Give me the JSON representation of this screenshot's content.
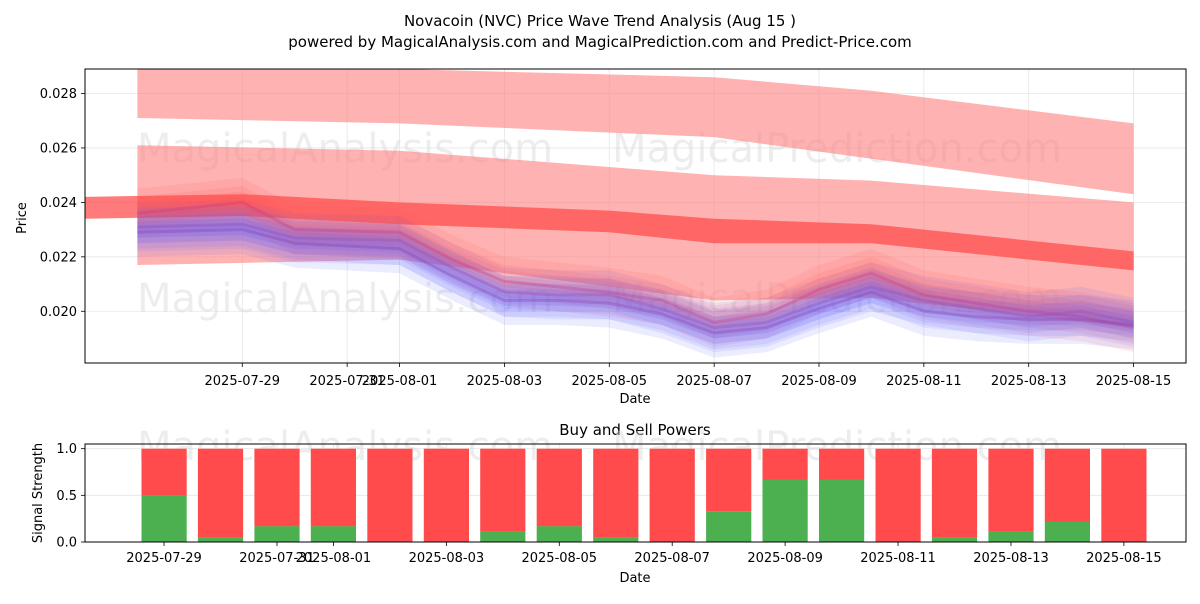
{
  "chart_data": [
    {
      "type": "line",
      "title": "Novacoin (NVC) Price Wave Trend Analysis (Aug 15 )",
      "subtitle": "powered by MagicalAnalysis.com and MagicalPrediction.com and Predict-Price.com",
      "xlabel": "Date",
      "ylabel": "Price",
      "ylim": [
        0.0181,
        0.0289
      ],
      "yticks": [
        0.02,
        0.022,
        0.024,
        0.026,
        0.028
      ],
      "ytick_labels": [
        "0.020",
        "0.022",
        "0.024",
        "0.026",
        "0.028"
      ],
      "xlim": [
        "2025-07-26",
        "2025-08-16"
      ],
      "xtick_labels": [
        "2025-07-29",
        "2025-07-31",
        "2025-08-01",
        "2025-08-03",
        "2025-08-05",
        "2025-08-07",
        "2025-08-09",
        "2025-08-11",
        "2025-08-13",
        "2025-08-15"
      ],
      "grid": true,
      "watermarks": [
        "MagicalAnalysis.com",
        "MagicalPrediction.com",
        "MagicalAnalysis.com",
        "MagicalPrediction.com"
      ],
      "colors": {
        "trend_band": "#ff7f7f",
        "trend_line": "#ff4d4d",
        "wave_blue": "#6666ff",
        "wave_red": "#ff5555"
      },
      "trend_bands": [
        {
          "x": [
            "2025-07-27",
            "2025-08-01",
            "2025-08-07",
            "2025-08-10",
            "2025-08-15"
          ],
          "low": [
            0.0271,
            0.0269,
            0.0264,
            0.0256,
            0.0243
          ],
          "high": [
            0.0289,
            0.0289,
            0.0286,
            0.0281,
            0.0269
          ]
        },
        {
          "x": [
            "2025-07-27",
            "2025-08-01",
            "2025-08-07",
            "2025-08-10",
            "2025-08-15"
          ],
          "low": [
            0.0217,
            0.0219,
            0.0204,
            0.0205,
            0.0194
          ],
          "high": [
            0.0261,
            0.0259,
            0.025,
            0.0248,
            0.024
          ]
        },
        {
          "x": [
            "2025-07-26",
            "2025-07-29",
            "2025-08-01",
            "2025-08-05",
            "2025-08-07",
            "2025-08-10",
            "2025-08-15"
          ],
          "low": [
            0.0234,
            0.0235,
            0.0232,
            0.0229,
            0.0225,
            0.0225,
            0.0215
          ],
          "high": [
            0.0242,
            0.0243,
            0.024,
            0.0237,
            0.0234,
            0.0232,
            0.0222
          ]
        }
      ],
      "series": [
        {
          "x": [
            "2025-07-27",
            "2025-07-29",
            "2025-07-30",
            "2025-08-01",
            "2025-08-02",
            "2025-08-03",
            "2025-08-04",
            "2025-08-05",
            "2025-08-06",
            "2025-08-07",
            "2025-08-08",
            "2025-08-09",
            "2025-08-10",
            "2025-08-11",
            "2025-08-12",
            "2025-08-13",
            "2025-08-14",
            "2025-08-15"
          ],
          "values": [
            0.0231,
            0.0232,
            0.0227,
            0.0226,
            0.0216,
            0.0207,
            0.0206,
            0.0206,
            0.0201,
            0.0194,
            0.0196,
            0.0203,
            0.0209,
            0.0204,
            0.0201,
            0.0198,
            0.02,
            0.0196
          ]
        },
        {
          "x": [
            "2025-07-27",
            "2025-07-29",
            "2025-07-30",
            "2025-08-01",
            "2025-08-02",
            "2025-08-03",
            "2025-08-04",
            "2025-08-05",
            "2025-08-06",
            "2025-08-07",
            "2025-08-08",
            "2025-08-09",
            "2025-08-10",
            "2025-08-11",
            "2025-08-12",
            "2025-08-13",
            "2025-08-14",
            "2025-08-15"
          ],
          "values": [
            0.0236,
            0.024,
            0.023,
            0.0229,
            0.0219,
            0.0211,
            0.0209,
            0.0207,
            0.0204,
            0.0196,
            0.0199,
            0.0208,
            0.0214,
            0.0206,
            0.0203,
            0.02,
            0.0198,
            0.0194
          ]
        },
        {
          "x": [
            "2025-07-27",
            "2025-07-29",
            "2025-07-30",
            "2025-08-01",
            "2025-08-02",
            "2025-08-03",
            "2025-08-04",
            "2025-08-05",
            "2025-08-06",
            "2025-08-07",
            "2025-08-08",
            "2025-08-09",
            "2025-08-10",
            "2025-08-11",
            "2025-08-12",
            "2025-08-13",
            "2025-08-14",
            "2025-08-15"
          ],
          "values": [
            0.0229,
            0.023,
            0.0225,
            0.0223,
            0.0213,
            0.0204,
            0.0204,
            0.0203,
            0.0199,
            0.0192,
            0.0194,
            0.0201,
            0.0207,
            0.02,
            0.0198,
            0.0197,
            0.0197,
            0.0195
          ]
        }
      ]
    },
    {
      "type": "bar",
      "stacked": true,
      "title": "Buy and Sell Powers",
      "xlabel": "Date",
      "ylabel": "Signal Strength",
      "ylim": [
        0,
        1.05
      ],
      "yticks": [
        0,
        0.5,
        1.0
      ],
      "ytick_labels": [
        "0.0",
        "0.5",
        "1.0"
      ],
      "xlim": [
        "2025-07-27.6",
        "2025-08-16.1"
      ],
      "xtick_labels": [
        "2025-07-29",
        "2025-07-31",
        "2025-08-01",
        "2025-08-03",
        "2025-08-05",
        "2025-08-07",
        "2025-08-09",
        "2025-08-11",
        "2025-08-13",
        "2025-08-15"
      ],
      "grid": true,
      "watermarks": [
        "MagicalAnalysis.com",
        "MagicalPrediction.com"
      ],
      "categories": [
        "2025-07-29",
        "2025-07-30",
        "2025-07-31",
        "2025-08-01",
        "2025-08-02",
        "2025-08-03",
        "2025-08-04",
        "2025-08-05",
        "2025-08-06",
        "2025-08-07",
        "2025-08-08",
        "2025-08-09",
        "2025-08-10",
        "2025-08-11",
        "2025-08-12",
        "2025-08-13",
        "2025-08-14",
        "2025-08-15"
      ],
      "series": [
        {
          "color": "#4caf50",
          "values": [
            0.5,
            0.05,
            0.17,
            0.17,
            0.0,
            0.0,
            0.11,
            0.17,
            0.05,
            0.0,
            0.33,
            0.67,
            0.67,
            0.0,
            0.05,
            0.11,
            0.22,
            0.0
          ]
        },
        {
          "color": "#ff4b4b",
          "values": [
            0.5,
            0.95,
            0.83,
            0.83,
            1.0,
            1.0,
            0.89,
            0.83,
            0.95,
            1.0,
            0.67,
            0.33,
            0.33,
            1.0,
            0.95,
            0.89,
            0.78,
            1.0
          ]
        }
      ]
    }
  ]
}
